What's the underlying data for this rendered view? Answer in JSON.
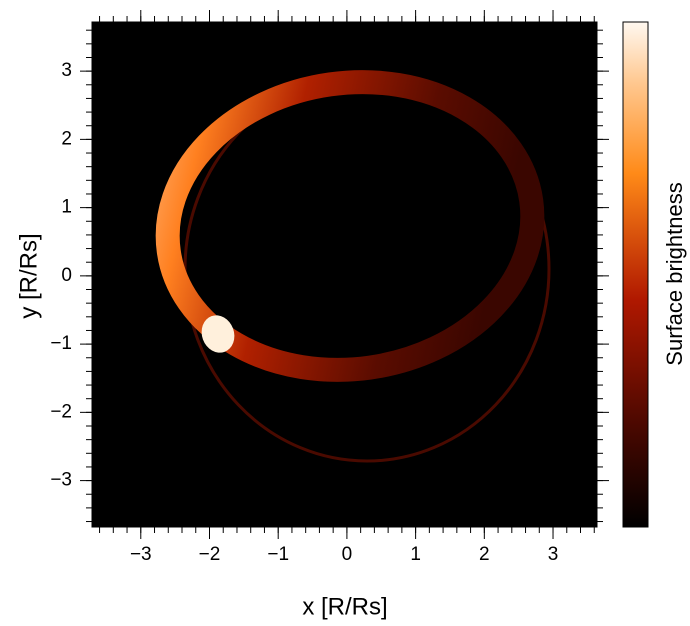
{
  "chart_data": {
    "type": "image",
    "x_label": "x [R/Rs]",
    "y_label": "y [R/Rs]",
    "colorbar_label": "Surface brightness",
    "xlim": [
      -3.71,
      3.64
    ],
    "ylim": [
      -3.68,
      3.72
    ],
    "xticks": [
      {
        "value": -3,
        "label": "−3"
      },
      {
        "value": -2,
        "label": "−2"
      },
      {
        "value": -1,
        "label": "−1"
      },
      0,
      1,
      2,
      3
    ],
    "yticks": [
      {
        "value": -3,
        "label": "−3"
      },
      {
        "value": -2,
        "label": "−2"
      },
      {
        "value": -1,
        "label": "−1"
      },
      0,
      1,
      2,
      3
    ],
    "minor_tick_step": 0.2
  }
}
